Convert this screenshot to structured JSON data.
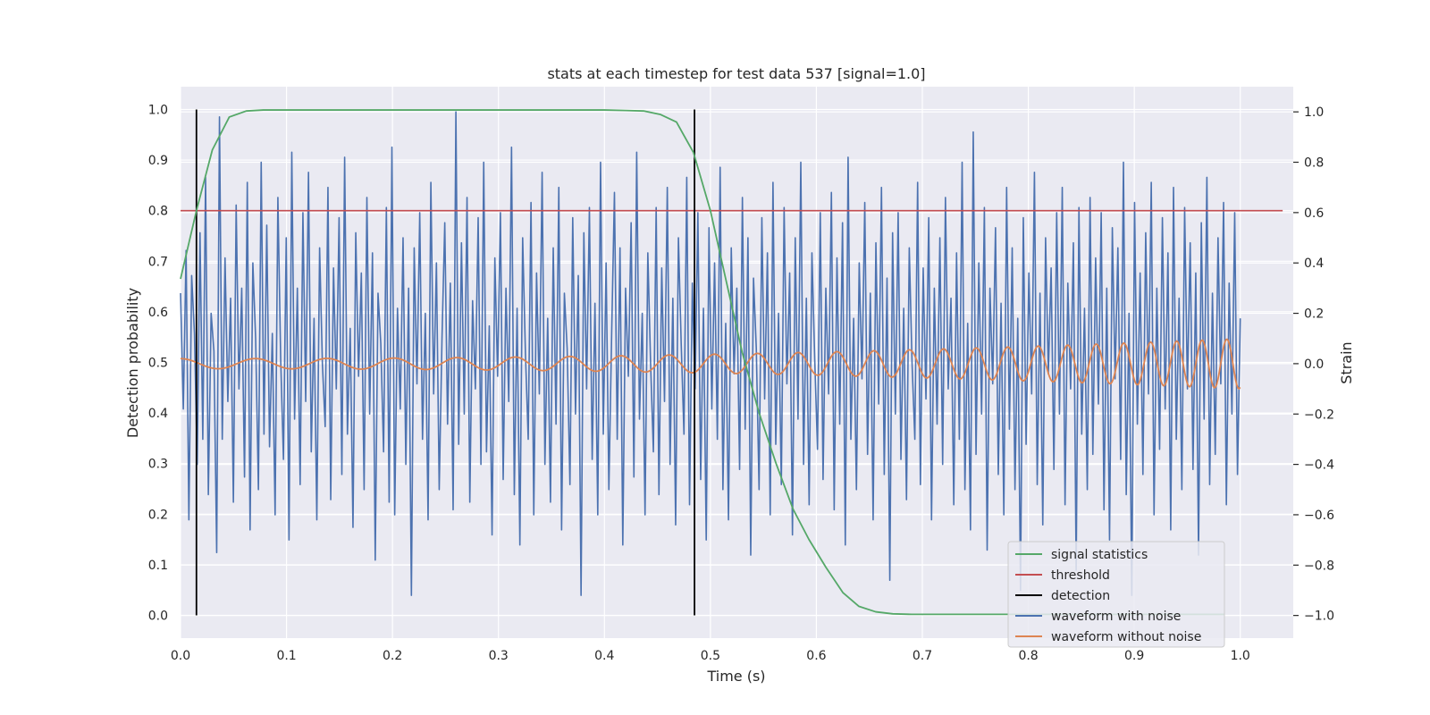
{
  "chart_data": {
    "type": "line",
    "title": "stats at each timestep for test data 537 [signal=1.0]",
    "xlabel": "Time (s)",
    "ylabel_left": "Detection probability",
    "ylabel_right": "Strain",
    "xlim": [
      0.0,
      1.05
    ],
    "ylim_left": [
      -0.045,
      1.045
    ],
    "ylim_right": [
      -1.09,
      1.1
    ],
    "x_ticks": [
      0.0,
      0.1,
      0.2,
      0.3,
      0.4,
      0.5,
      0.6,
      0.7,
      0.8,
      0.9,
      1.0
    ],
    "x_tick_labels": [
      "0.0",
      "0.1",
      "0.2",
      "0.3",
      "0.4",
      "0.5",
      "0.6",
      "0.7",
      "0.8",
      "0.9",
      "1.0"
    ],
    "y_left_ticks": [
      0.0,
      0.1,
      0.2,
      0.3,
      0.4,
      0.5,
      0.6,
      0.7,
      0.8,
      0.9,
      1.0
    ],
    "y_left_tick_labels": [
      "0.0",
      "0.1",
      "0.2",
      "0.3",
      "0.4",
      "0.5",
      "0.6",
      "0.7",
      "0.8",
      "0.9",
      "1.0"
    ],
    "y_right_ticks": [
      -1.0,
      -0.8,
      -0.6,
      -0.4,
      -0.2,
      0.0,
      0.2,
      0.4,
      0.6,
      0.8,
      1.0
    ],
    "y_right_tick_labels": [
      "−1.0",
      "−0.8",
      "−0.6",
      "−0.4",
      "−0.2",
      "0.0",
      "0.2",
      "0.4",
      "0.6",
      "0.8",
      "1.0"
    ],
    "grid": true,
    "legend_position": "lower-right",
    "series": [
      {
        "name": "signal statistics",
        "axis": "left",
        "color": "#55a868",
        "x": [
          0.0,
          0.015,
          0.03,
          0.046,
          0.062,
          0.078,
          0.1,
          0.15,
          0.2,
          0.25,
          0.3,
          0.35,
          0.4,
          0.42,
          0.437,
          0.453,
          0.468,
          0.484,
          0.5,
          0.515,
          0.53,
          0.546,
          0.562,
          0.578,
          0.593,
          0.609,
          0.625,
          0.64,
          0.656,
          0.672,
          0.69,
          0.72,
          0.8,
          0.9,
          0.985
        ],
        "y": [
          0.665,
          0.8,
          0.92,
          0.985,
          0.997,
          0.999,
          0.999,
          0.999,
          0.999,
          0.999,
          0.999,
          0.999,
          0.999,
          0.998,
          0.997,
          0.99,
          0.975,
          0.915,
          0.8,
          0.66,
          0.52,
          0.4,
          0.3,
          0.21,
          0.15,
          0.095,
          0.045,
          0.018,
          0.007,
          0.003,
          0.002,
          0.002,
          0.002,
          0.002,
          0.002
        ]
      },
      {
        "name": "threshold",
        "axis": "left",
        "color": "#c44e52",
        "x": [
          0.0,
          1.04
        ],
        "y": [
          0.8,
          0.8
        ]
      },
      {
        "name": "detection",
        "axis": "left",
        "color": "#000000",
        "segments": [
          {
            "x": 0.015,
            "y0": 0.0,
            "y1": 1.0
          },
          {
            "x": 0.485,
            "y0": 0.0,
            "y1": 1.0
          }
        ]
      },
      {
        "name": "waveform with noise",
        "axis": "right",
        "color": "#4c72b0",
        "x_range": [
          0.0,
          1.0
        ],
        "y": [
          0.28,
          -0.18,
          0.45,
          -0.62,
          0.35,
          0.12,
          -0.4,
          0.52,
          -0.3,
          0.74,
          -0.52,
          0.2,
          0.05,
          -0.75,
          0.98,
          -0.3,
          0.42,
          -0.15,
          0.26,
          -0.55,
          0.63,
          -0.1,
          0.3,
          -0.45,
          0.72,
          -0.66,
          0.4,
          0.1,
          -0.5,
          0.8,
          -0.28,
          0.55,
          -0.33,
          0.12,
          -0.6,
          0.66,
          0.02,
          -0.38,
          0.5,
          -0.7,
          0.84,
          -0.22,
          0.3,
          -0.48,
          0.6,
          -0.15,
          0.76,
          -0.35,
          0.18,
          -0.62,
          0.46,
          0.0,
          -0.25,
          0.7,
          -0.54,
          0.38,
          -0.1,
          0.58,
          -0.44,
          0.82,
          -0.28,
          0.14,
          -0.65,
          0.52,
          -0.05,
          0.36,
          -0.5,
          0.66,
          -0.2,
          0.44,
          -0.78,
          0.28,
          0.08,
          -0.35,
          0.62,
          -0.55,
          0.86,
          -0.6,
          0.22,
          -0.18,
          0.5,
          -0.4,
          0.3,
          -0.92,
          0.46,
          -0.08,
          0.6,
          -0.3,
          0.2,
          -0.62,
          0.72,
          -0.12,
          0.4,
          -0.5,
          0.1,
          0.56,
          -0.24,
          0.32,
          -0.58,
          1.0,
          -0.32,
          0.48,
          -0.2,
          0.66,
          -0.55,
          0.25,
          -0.1,
          0.58,
          -0.4,
          0.8,
          -0.35,
          0.15,
          -0.68,
          0.42,
          -0.05,
          0.6,
          -0.46,
          0.3,
          -0.15,
          0.86,
          -0.52,
          0.22,
          -0.72,
          0.5,
          0.04,
          -0.3,
          0.64,
          -0.6,
          0.36,
          -0.12,
          0.76,
          -0.4,
          0.18,
          -0.55,
          0.46,
          -0.24,
          0.7,
          -0.66,
          0.28,
          0.06,
          -0.48,
          0.58,
          -0.2,
          0.35,
          -0.92,
          0.52,
          -0.1,
          0.62,
          -0.38,
          0.24,
          -0.6,
          0.8,
          -0.28,
          0.4,
          -0.5,
          0.12,
          0.68,
          -0.3,
          0.46,
          -0.72,
          0.3,
          -0.05,
          0.56,
          -0.45,
          0.84,
          -0.22,
          0.2,
          -0.6,
          0.44,
          0.0,
          -0.35,
          0.62,
          -0.52,
          0.38,
          -0.15,
          0.7,
          -0.4,
          0.26,
          -0.64,
          0.5,
          0.08,
          -0.28,
          0.74,
          -0.56,
          0.32,
          -0.1,
          0.6,
          -0.46,
          0.22,
          -0.7,
          0.54,
          -0.18,
          0.4,
          -0.3,
          0.78,
          -0.5,
          0.16,
          -0.62,
          0.46,
          -0.04,
          0.3,
          -0.42,
          0.66,
          -0.26,
          0.5,
          -0.76,
          0.34,
          0.06,
          -0.5,
          0.58,
          -0.14,
          0.44,
          -0.6,
          0.72,
          -0.32,
          0.2,
          -0.48,
          0.62,
          -0.08,
          0.36,
          -0.68,
          0.5,
          -0.22,
          0.8,
          -0.4,
          0.26,
          -0.56,
          0.44,
          0.02,
          -0.34,
          0.6,
          -0.46,
          0.3,
          -0.12,
          0.68,
          -0.58,
          0.42,
          -0.24,
          0.56,
          -0.72,
          0.82,
          -0.3,
          0.18,
          -0.5,
          0.4,
          -0.06,
          0.64,
          -0.36,
          0.28,
          -0.62,
          0.48,
          -0.16,
          0.7,
          -0.44,
          0.34,
          -0.86,
          0.52,
          -0.2,
          0.6,
          -0.38,
          0.22,
          -0.54,
          0.46,
          0.0,
          -0.3,
          0.72,
          -0.48,
          0.38,
          -0.14,
          0.58,
          -0.62,
          0.3,
          -0.24,
          0.5,
          -0.4,
          0.66,
          -0.1,
          0.26,
          -0.56,
          0.44,
          -0.3,
          0.8,
          -0.5,
          0.16,
          -0.66,
          0.92,
          -0.36,
          0.4,
          -0.2,
          0.62,
          -0.74,
          0.3,
          -0.08,
          0.54,
          -0.44,
          0.24,
          -0.6,
          0.7,
          -0.26,
          0.46,
          -0.5,
          0.18,
          -0.9,
          0.58,
          -0.32,
          0.36,
          -0.12,
          0.76,
          -0.48,
          0.28,
          -0.64,
          0.5,
          -0.04,
          0.38,
          -0.42,
          0.6,
          -0.2,
          0.7,
          -0.56,
          0.32,
          -0.1,
          0.48,
          -0.82,
          0.62,
          -0.28,
          0.22,
          -0.5,
          0.66,
          -0.36,
          0.42,
          -0.16,
          0.6,
          -0.58,
          0.3,
          -0.7,
          0.54,
          -0.06,
          0.46,
          -0.38,
          0.8,
          -0.52,
          0.2,
          -0.92,
          0.64,
          -0.24,
          0.36,
          -0.44,
          0.52,
          -0.12,
          0.72,
          -0.6,
          0.3,
          -0.34,
          0.58,
          -0.18,
          0.44,
          -0.66,
          0.7,
          -0.3,
          0.26,
          -0.5,
          0.62,
          -0.1,
          0.48,
          -0.42,
          0.36,
          -0.76,
          0.56,
          -0.22,
          0.74,
          -0.48,
          0.28,
          -0.36,
          0.5,
          -0.08,
          0.64,
          -0.56,
          0.32,
          -0.2,
          0.6,
          -0.44,
          0.18
        ]
      },
      {
        "name": "waveform without noise",
        "axis": "right",
        "color": "#dd8452",
        "description_only_for_rendering": false,
        "x_range": [
          0.0,
          1.0
        ],
        "amplitude_start": 0.02,
        "amplitude_end": 0.1,
        "freq_start_hz": 14,
        "freq_end_hz": 44
      }
    ]
  },
  "legend": [
    {
      "label": "signal statistics",
      "color": "#55a868"
    },
    {
      "label": "threshold",
      "color": "#c44e52"
    },
    {
      "label": "detection",
      "color": "#000000"
    },
    {
      "label": "waveform with noise",
      "color": "#4c72b0"
    },
    {
      "label": "waveform without noise",
      "color": "#dd8452"
    }
  ],
  "colors": {
    "plot_background": "#eaeaf2",
    "grid": "#ffffff",
    "text": "#262626"
  }
}
